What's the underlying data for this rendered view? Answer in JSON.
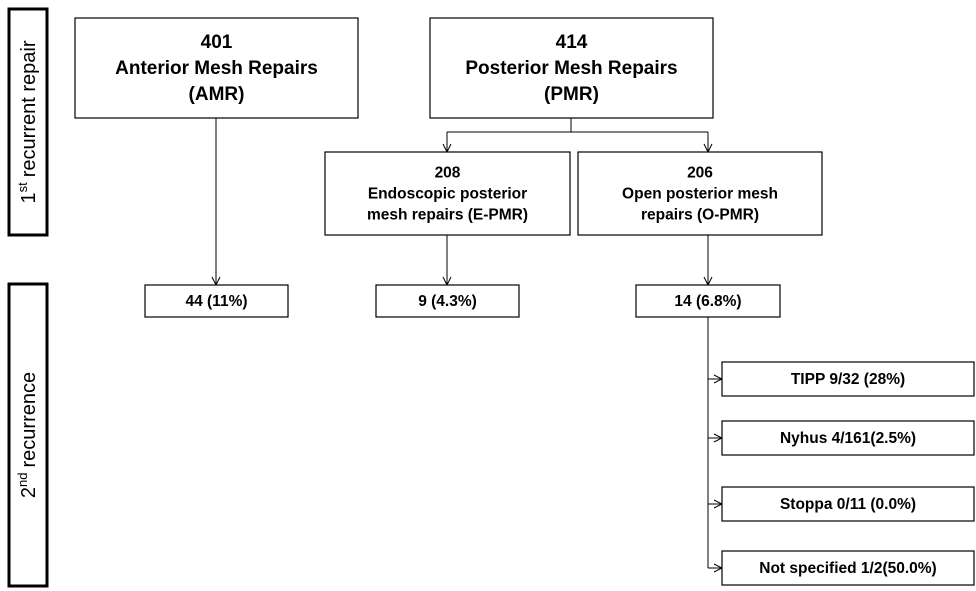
{
  "side_labels": [
    {
      "number": "1",
      "suffix": "st",
      "text": "recurrent repair"
    },
    {
      "number": "2",
      "suffix": "nd",
      "text": "recurrence"
    }
  ],
  "nodes": [
    {
      "lines": [
        "401",
        "Anterior Mesh Repairs",
        "(AMR)"
      ]
    },
    {
      "lines": [
        "414",
        "Posterior Mesh Repairs",
        "(PMR)"
      ]
    },
    {
      "lines": [
        "208",
        "Endoscopic posterior",
        "mesh repairs (E-PMR)"
      ]
    },
    {
      "lines": [
        "206",
        "Open posterior mesh",
        "repairs (O-PMR)"
      ]
    },
    {
      "lines": [
        "44 (11%)"
      ]
    },
    {
      "lines": [
        "9 (4.3%)"
      ]
    },
    {
      "lines": [
        "14 (6.8%)"
      ]
    },
    {
      "lines": [
        "TIPP 9/32 (28%)"
      ]
    },
    {
      "lines": [
        "Nyhus 4/161(2.5%)"
      ]
    },
    {
      "lines": [
        "Stoppa 0/11 (0.0%)"
      ]
    },
    {
      "lines": [
        "Not specified 1/2(50.0%)"
      ]
    }
  ]
}
